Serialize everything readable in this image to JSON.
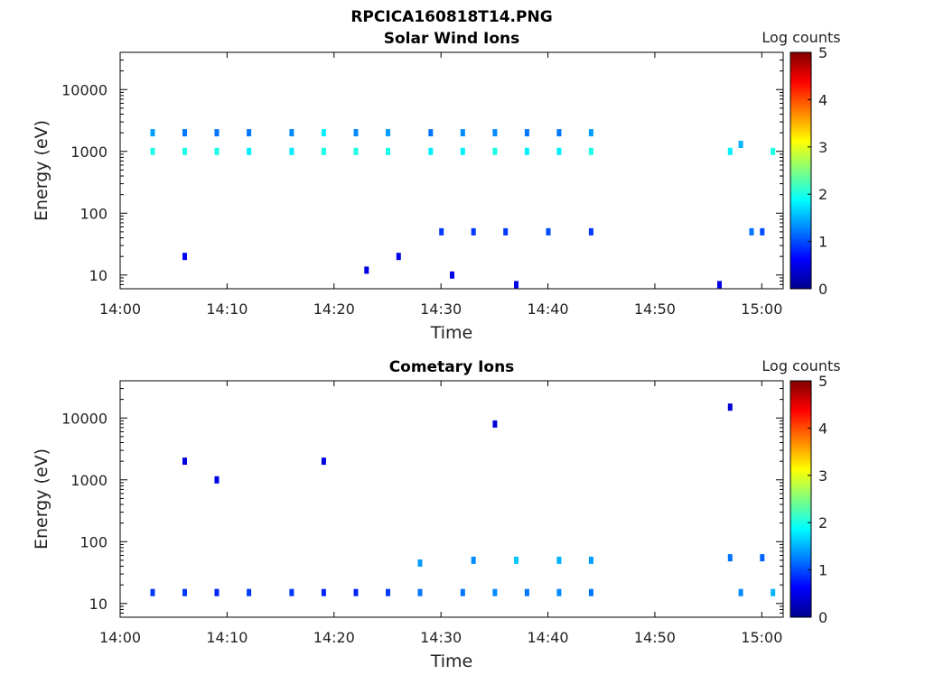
{
  "figure_title": "RPCICA160818T14.PNG",
  "colors": {
    "frame": "#000000",
    "background": "#ffffff"
  },
  "chart_data": [
    {
      "type": "heatmap",
      "title": "Solar Wind Ions",
      "xlabel": "Time",
      "ylabel": "Energy (eV)",
      "xscale": "time",
      "yscale": "log",
      "xlim": [
        "14:00",
        "15:02"
      ],
      "ylim": [
        6,
        40000
      ],
      "x_ticks": [
        "14:00",
        "14:10",
        "14:20",
        "14:30",
        "14:40",
        "14:50",
        "15:00"
      ],
      "y_ticks": [
        "10",
        "100",
        "1000",
        "10000"
      ],
      "colorbar": {
        "label": "Log counts",
        "range": [
          0,
          5
        ],
        "ticks": [
          "0",
          "1",
          "2",
          "3",
          "4",
          "5"
        ],
        "colormap": "jet"
      },
      "grid": false,
      "points": [
        {
          "t": "14:03",
          "e": 1000,
          "v": 2.0
        },
        {
          "t": "14:03",
          "e": 2000,
          "v": 1.4
        },
        {
          "t": "14:06",
          "e": 1000,
          "v": 2.0
        },
        {
          "t": "14:06",
          "e": 2000,
          "v": 1.2
        },
        {
          "t": "14:09",
          "e": 1000,
          "v": 2.0
        },
        {
          "t": "14:09",
          "e": 2000,
          "v": 1.2
        },
        {
          "t": "14:12",
          "e": 1000,
          "v": 1.8
        },
        {
          "t": "14:12",
          "e": 2000,
          "v": 1.2
        },
        {
          "t": "14:16",
          "e": 1000,
          "v": 1.8
        },
        {
          "t": "14:16",
          "e": 2000,
          "v": 1.3
        },
        {
          "t": "14:19",
          "e": 1000,
          "v": 2.0
        },
        {
          "t": "14:19",
          "e": 2000,
          "v": 1.8
        },
        {
          "t": "14:22",
          "e": 1000,
          "v": 2.0
        },
        {
          "t": "14:22",
          "e": 2000,
          "v": 1.3
        },
        {
          "t": "14:25",
          "e": 1000,
          "v": 2.0
        },
        {
          "t": "14:25",
          "e": 2000,
          "v": 1.4
        },
        {
          "t": "14:29",
          "e": 1000,
          "v": 1.8
        },
        {
          "t": "14:29",
          "e": 2000,
          "v": 1.2
        },
        {
          "t": "14:32",
          "e": 1000,
          "v": 1.8
        },
        {
          "t": "14:32",
          "e": 2000,
          "v": 1.3
        },
        {
          "t": "14:35",
          "e": 1000,
          "v": 2.0
        },
        {
          "t": "14:35",
          "e": 2000,
          "v": 1.3
        },
        {
          "t": "14:38",
          "e": 1000,
          "v": 1.8
        },
        {
          "t": "14:38",
          "e": 2000,
          "v": 1.2
        },
        {
          "t": "14:41",
          "e": 1000,
          "v": 1.8
        },
        {
          "t": "14:41",
          "e": 2000,
          "v": 1.2
        },
        {
          "t": "14:44",
          "e": 1000,
          "v": 2.0
        },
        {
          "t": "14:44",
          "e": 2000,
          "v": 1.4
        },
        {
          "t": "14:30",
          "e": 50,
          "v": 0.9
        },
        {
          "t": "14:33",
          "e": 50,
          "v": 0.9
        },
        {
          "t": "14:36",
          "e": 50,
          "v": 0.9
        },
        {
          "t": "14:40",
          "e": 50,
          "v": 1.0
        },
        {
          "t": "14:44",
          "e": 50,
          "v": 0.9
        },
        {
          "t": "14:23",
          "e": 12,
          "v": 0.5
        },
        {
          "t": "14:31",
          "e": 10,
          "v": 0.5
        },
        {
          "t": "14:37",
          "e": 7,
          "v": 0.5
        },
        {
          "t": "14:06",
          "e": 20,
          "v": 0.6
        },
        {
          "t": "14:26",
          "e": 20,
          "v": 0.5
        },
        {
          "t": "14:57",
          "e": 1000,
          "v": 1.8
        },
        {
          "t": "14:58",
          "e": 1300,
          "v": 1.5
        },
        {
          "t": "15:01",
          "e": 1000,
          "v": 2.0
        },
        {
          "t": "14:59",
          "e": 50,
          "v": 1.2
        },
        {
          "t": "15:00",
          "e": 50,
          "v": 1.0
        },
        {
          "t": "14:56",
          "e": 7,
          "v": 0.5
        }
      ]
    },
    {
      "type": "heatmap",
      "title": "Cometary Ions",
      "xlabel": "Time",
      "ylabel": "Energy (eV)",
      "xscale": "time",
      "yscale": "log",
      "xlim": [
        "14:00",
        "15:02"
      ],
      "ylim": [
        6,
        40000
      ],
      "x_ticks": [
        "14:00",
        "14:10",
        "14:20",
        "14:30",
        "14:40",
        "14:50",
        "15:00"
      ],
      "y_ticks": [
        "10",
        "100",
        "1000",
        "10000"
      ],
      "colorbar": {
        "label": "Log counts",
        "range": [
          0,
          5
        ],
        "ticks": [
          "0",
          "1",
          "2",
          "3",
          "4",
          "5"
        ],
        "colormap": "jet"
      },
      "grid": false,
      "points": [
        {
          "t": "14:03",
          "e": 15,
          "v": 0.9
        },
        {
          "t": "14:06",
          "e": 15,
          "v": 0.9
        },
        {
          "t": "14:09",
          "e": 15,
          "v": 0.8
        },
        {
          "t": "14:12",
          "e": 15,
          "v": 0.9
        },
        {
          "t": "14:16",
          "e": 15,
          "v": 0.9
        },
        {
          "t": "14:19",
          "e": 15,
          "v": 0.8
        },
        {
          "t": "14:22",
          "e": 15,
          "v": 0.8
        },
        {
          "t": "14:25",
          "e": 15,
          "v": 0.9
        },
        {
          "t": "14:28",
          "e": 15,
          "v": 1.2
        },
        {
          "t": "14:32",
          "e": 15,
          "v": 1.2
        },
        {
          "t": "14:35",
          "e": 15,
          "v": 1.3
        },
        {
          "t": "14:38",
          "e": 15,
          "v": 1.2
        },
        {
          "t": "14:41",
          "e": 15,
          "v": 1.3
        },
        {
          "t": "14:44",
          "e": 15,
          "v": 1.2
        },
        {
          "t": "14:28",
          "e": 45,
          "v": 1.4
        },
        {
          "t": "14:33",
          "e": 50,
          "v": 1.3
        },
        {
          "t": "14:37",
          "e": 50,
          "v": 1.6
        },
        {
          "t": "14:41",
          "e": 50,
          "v": 1.5
        },
        {
          "t": "14:44",
          "e": 50,
          "v": 1.4
        },
        {
          "t": "14:58",
          "e": 15,
          "v": 1.3
        },
        {
          "t": "15:01",
          "e": 15,
          "v": 1.5
        },
        {
          "t": "14:57",
          "e": 55,
          "v": 1.2
        },
        {
          "t": "15:00",
          "e": 55,
          "v": 1.1
        },
        {
          "t": "14:06",
          "e": 2000,
          "v": 0.5
        },
        {
          "t": "14:09",
          "e": 1000,
          "v": 0.5
        },
        {
          "t": "14:19",
          "e": 2000,
          "v": 0.5
        },
        {
          "t": "14:35",
          "e": 8000,
          "v": 0.4
        },
        {
          "t": "14:57",
          "e": 15000,
          "v": 0.4
        }
      ]
    }
  ]
}
